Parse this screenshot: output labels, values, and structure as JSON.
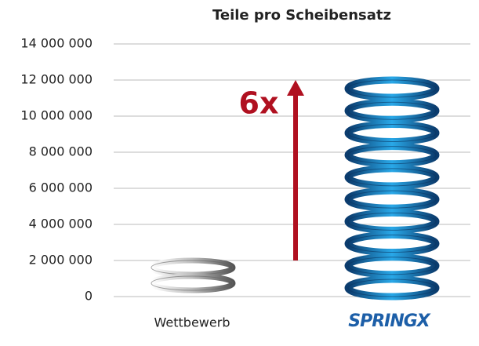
{
  "chart_data": {
    "type": "pictograph",
    "title": "Teile pro Scheibensatz",
    "categories": [
      "Wettbewerb",
      "SPRINGX"
    ],
    "series": [
      {
        "name": null,
        "colors": [
          "#9a9a9a",
          "#1d8fd0"
        ],
        "values": [
          2000000,
          12000000
        ]
      }
    ],
    "annotation": "6x",
    "ylim": [
      0,
      14000000
    ],
    "yticks": [
      {
        "value": 0,
        "label": "0"
      },
      {
        "value": 2000000,
        "label": "2 000 000"
      },
      {
        "value": 4000000,
        "label": "4 000 000"
      },
      {
        "value": 6000000,
        "label": "6 000 000"
      },
      {
        "value": 8000000,
        "label": "8 000 000"
      },
      {
        "value": 10000000,
        "label": "10 000 000"
      },
      {
        "value": 12000000,
        "label": "12 000 000"
      },
      {
        "value": 14000000,
        "label": "14 000 000"
      }
    ],
    "grid": true
  }
}
